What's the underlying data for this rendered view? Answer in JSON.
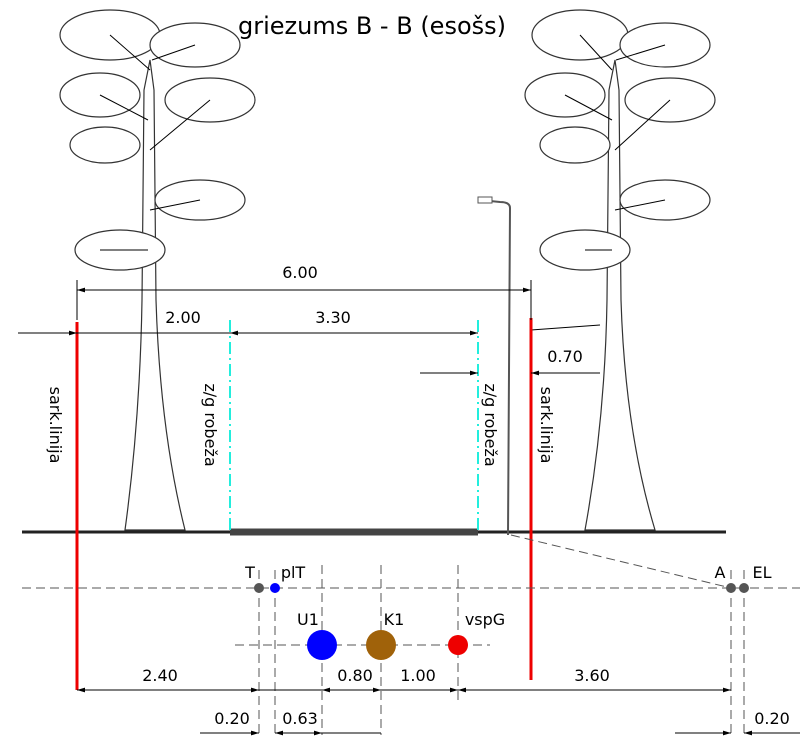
{
  "title": "griezums B - B (esošs)",
  "dimensions_top": [
    "6.00",
    "2.00",
    "3.30",
    "0.70"
  ],
  "labels": {
    "red_line_left": "sark.linija",
    "zg_left": "z/g robeža",
    "zg_right": "z/g robeža",
    "red_line_right": "sark.linija"
  },
  "utilities": [
    {
      "label": "T"
    },
    {
      "label": "plT"
    },
    {
      "label": "U1"
    },
    {
      "label": "K1"
    },
    {
      "label": "vspG"
    },
    {
      "label": "A"
    },
    {
      "label": "EL"
    }
  ],
  "dimensions_bottom": [
    "2.40",
    "0.80",
    "1.00",
    "3.60",
    "0.20",
    "0.63",
    "0.20"
  ]
}
